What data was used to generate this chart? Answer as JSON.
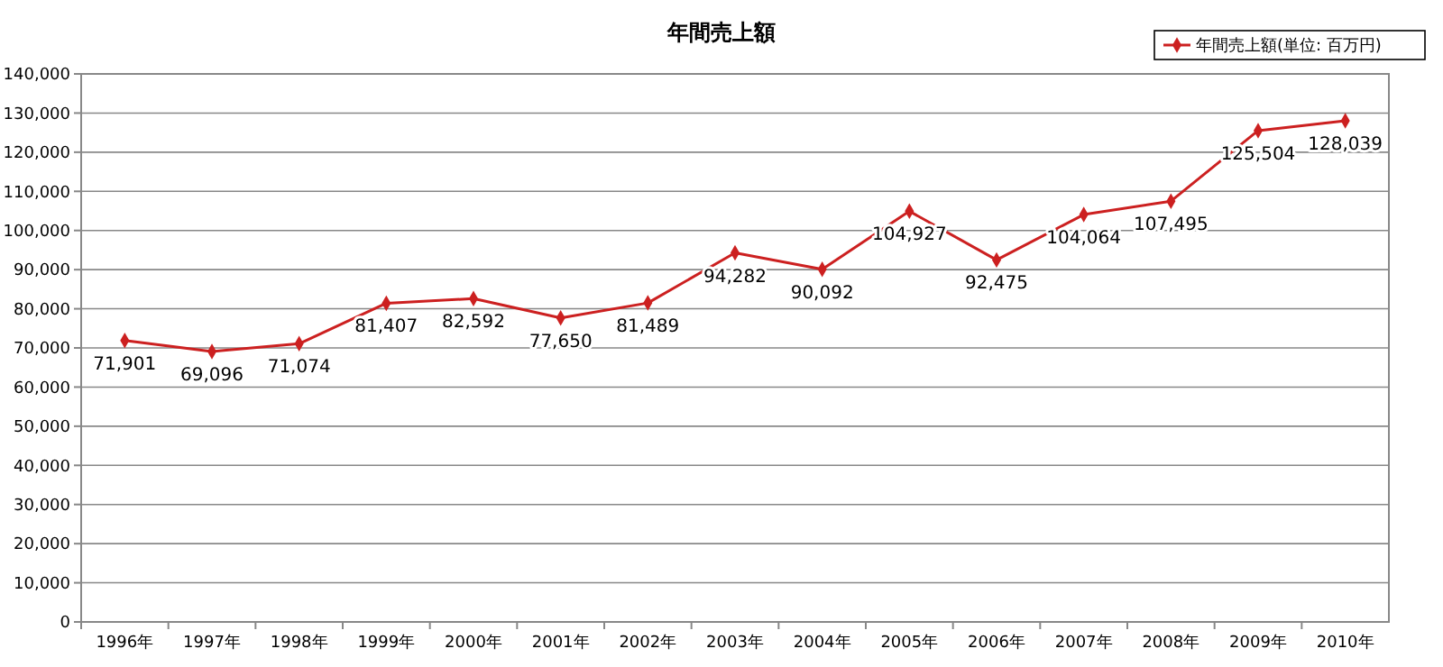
{
  "chart_data": {
    "type": "line",
    "title": "年間売上額",
    "categories": [
      "1996年",
      "1997年",
      "1998年",
      "1999年",
      "2000年",
      "2001年",
      "2002年",
      "2003年",
      "2004年",
      "2005年",
      "2006年",
      "2007年",
      "2008年",
      "2009年",
      "2010年"
    ],
    "series": [
      {
        "name": "年間売上額(単位: 百万円)",
        "color": "#cc2020",
        "values": [
          71901,
          69096,
          71074,
          81407,
          82592,
          77650,
          81489,
          94282,
          90092,
          104927,
          92475,
          104064,
          107495,
          125504,
          128039
        ],
        "value_labels": [
          "71,901",
          "69,096",
          "71,074",
          "81,407",
          "82,592",
          "77,650",
          "81,489",
          "94,282",
          "90,092",
          "104,927",
          "92,475",
          "104,064",
          "107,495",
          "125,504",
          "128,039"
        ]
      }
    ],
    "ylim": [
      0,
      140000
    ],
    "yticks": [
      0,
      {
        "value": 10000,
        "label": "10,000"
      },
      {
        "value": 20000,
        "label": "20,000"
      },
      {
        "value": 30000,
        "label": "30,000"
      },
      {
        "value": 40000,
        "label": "40,000"
      },
      {
        "value": 50000,
        "label": "50,000"
      },
      {
        "value": 60000,
        "label": "60,000"
      },
      {
        "value": 70000,
        "label": "70,000"
      },
      {
        "value": 80000,
        "label": "80,000"
      },
      {
        "value": 90000,
        "label": "90,000"
      },
      {
        "value": 100000,
        "label": "100,000"
      },
      {
        "value": 110000,
        "label": "110,000"
      },
      {
        "value": 120000,
        "label": "120,000"
      },
      {
        "value": 130000,
        "label": "130,000"
      },
      {
        "value": 140000,
        "label": "140,000"
      }
    ],
    "grid": "y",
    "legend": "top right",
    "marker": "diamond",
    "line_style": "solid"
  }
}
